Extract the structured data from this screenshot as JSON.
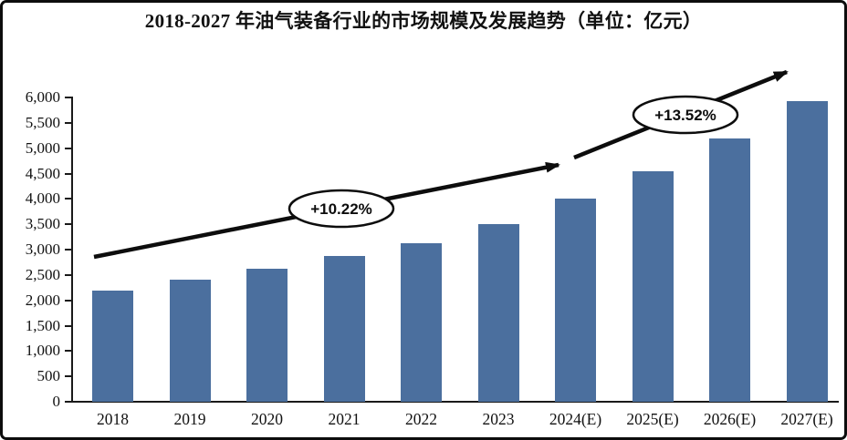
{
  "figure": {
    "background": "#ffffff",
    "border_color": "#0d0d0d"
  },
  "chart_data": {
    "type": "bar",
    "title": "2018-2027 年油气装备行业的市场规模及发展趋势（单位：亿元）",
    "unit": "亿元",
    "categories": [
      "2018",
      "2019",
      "2020",
      "2021",
      "2022",
      "2023",
      "2024(E)",
      "2025(E)",
      "2026(E)",
      "2027(E)"
    ],
    "values": [
      2200,
      2400,
      2630,
      2870,
      3130,
      3510,
      4000,
      4540,
      5190,
      5930
    ],
    "ylim": [
      0,
      6000
    ],
    "ytick_step": 500,
    "ytick_labels": [
      "0",
      "500",
      "1,000",
      "1,500",
      "2,000",
      "2,500",
      "3,000",
      "3,500",
      "4,000",
      "4,500",
      "5,000",
      "5,500",
      "6,000"
    ],
    "grid": false,
    "legend": "none",
    "bar_color": "#4b6f9e",
    "trend_line_color": "#0d0d0d",
    "annotations": [
      {
        "label": "+10.22%",
        "segment": "2018-2023 growth trend"
      },
      {
        "label": "+13.52%",
        "segment": "2023-2027 growth trend"
      }
    ]
  }
}
